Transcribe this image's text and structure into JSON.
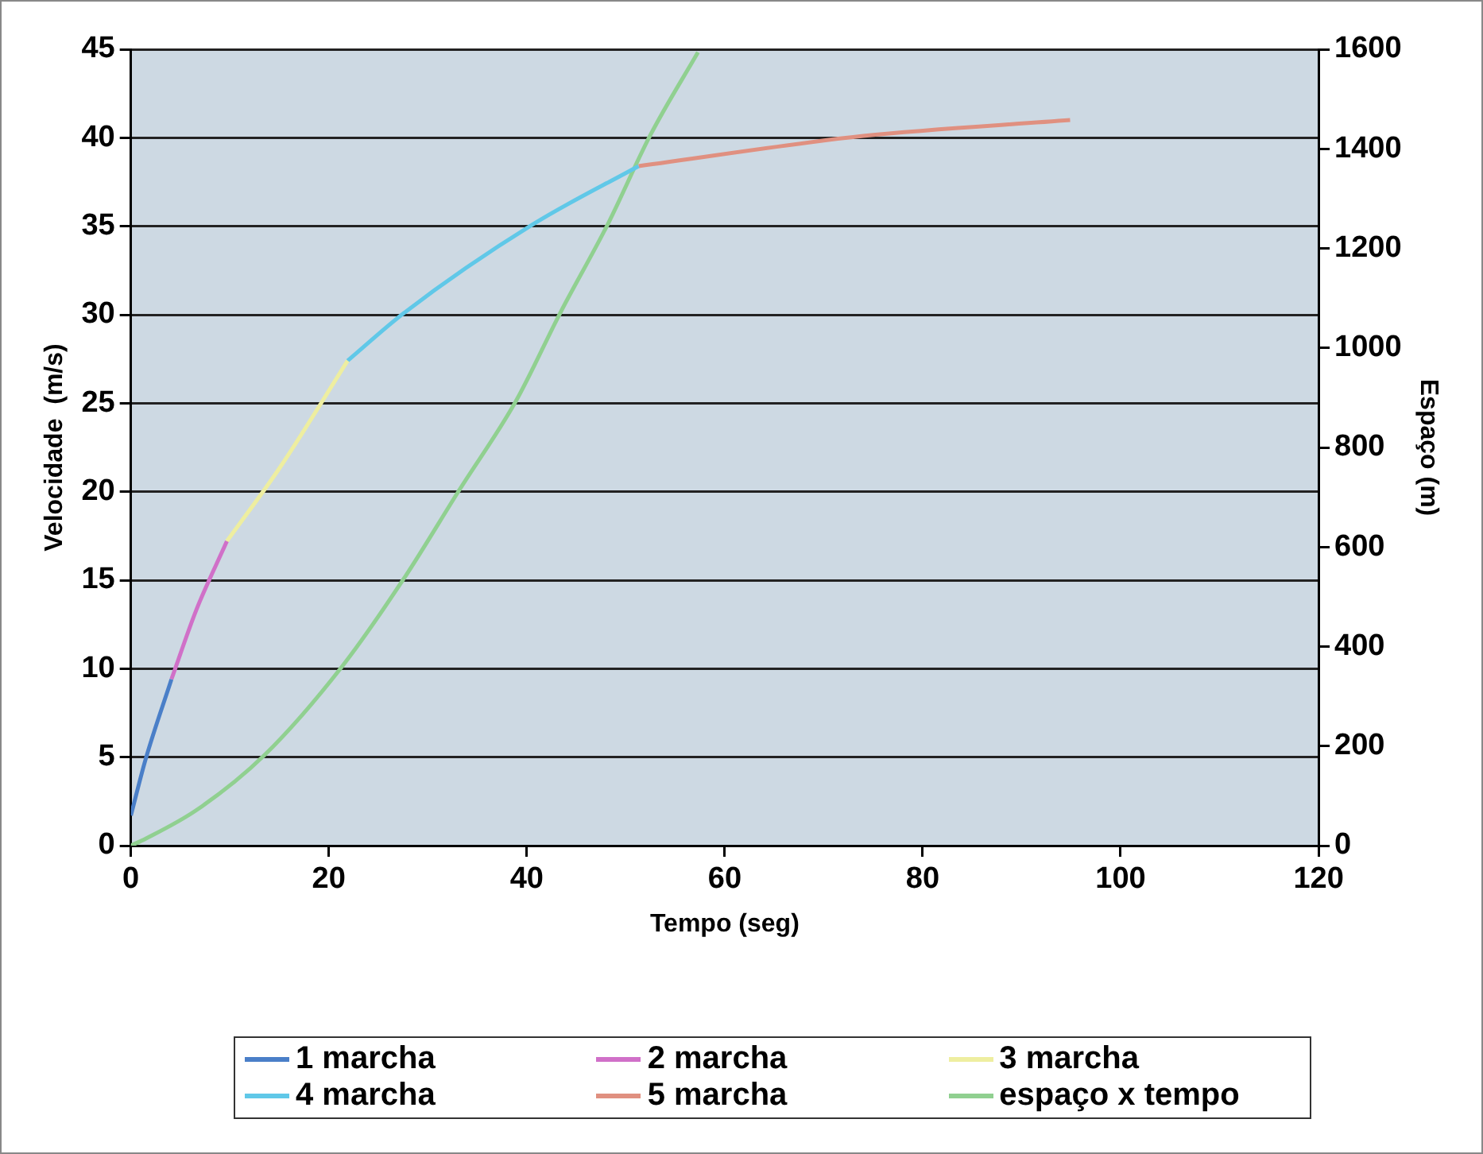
{
  "chart_data": {
    "type": "line",
    "xlabel": "Tempo (seg)",
    "ylabel": "Velocidade  (m/s)",
    "y2label": "Espaço (m)",
    "xlim": [
      0,
      120
    ],
    "xticks": [
      0,
      20,
      40,
      60,
      80,
      100,
      120
    ],
    "ylim": [
      0,
      45
    ],
    "yticks": [
      0,
      5,
      10,
      15,
      20,
      25,
      30,
      35,
      40,
      45
    ],
    "y2lim": [
      0,
      1600
    ],
    "y2ticks": [
      0,
      200,
      400,
      600,
      800,
      1000,
      1200,
      1400,
      1600
    ],
    "grid": "y",
    "legend": "bottom",
    "marker": "none",
    "line_style": "solid",
    "series": [
      {
        "name": "1 marcha",
        "color": "#4a7fc8",
        "x": [
          0,
          1.5,
          4.1
        ],
        "values": [
          1.7,
          4.9,
          9.4
        ]
      },
      {
        "name": "2 marcha",
        "color": "#d070c8",
        "x": [
          4.1,
          6.6,
          9.7
        ],
        "values": [
          9.4,
          13.3,
          17.2
        ]
      },
      {
        "name": "3 marcha",
        "color": "#eeeea0",
        "x": [
          9.7,
          15.1,
          21.9
        ],
        "values": [
          17.2,
          21.4,
          27.4
        ]
      },
      {
        "name": "4 marcha",
        "color": "#60c8e8",
        "x": [
          21.9,
          27.6,
          40.6,
          51.3
        ],
        "values": [
          27.4,
          30.1,
          35.1,
          38.4
        ]
      },
      {
        "name": "5 marcha",
        "color": "#e09080",
        "x": [
          51.3,
          74,
          94.9
        ],
        "values": [
          38.4,
          40.1,
          41.0
        ]
      },
      {
        "name": "espaço x tempo",
        "color": "#90d090",
        "axis": "y2",
        "x": [
          0,
          1.5,
          6.6,
          13.4,
          21.3,
          27.6,
          33.2,
          38.9,
          43.4,
          48.2,
          52.5,
          57.3
        ],
        "values": [
          0,
          14,
          71,
          180,
          359,
          537,
          715,
          893,
          1071,
          1249,
          1428,
          1594
        ]
      }
    ]
  }
}
